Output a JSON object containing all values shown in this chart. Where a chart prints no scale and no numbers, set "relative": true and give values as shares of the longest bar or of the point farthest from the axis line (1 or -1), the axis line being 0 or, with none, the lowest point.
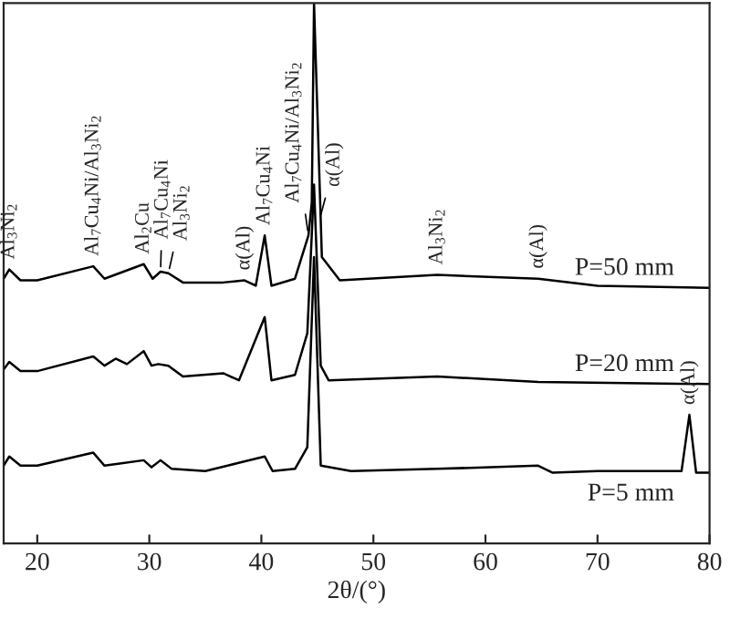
{
  "chart_data": {
    "type": "line",
    "relative": true,
    "xlabel": "2θ/(°)",
    "xlim": [
      17,
      80
    ],
    "xticks": [
      20,
      30,
      40,
      50,
      60,
      70,
      80
    ],
    "grid": false,
    "legend": false,
    "marker": "none",
    "line_style": "solid",
    "series": [
      {
        "name": "P=50 mm",
        "color": "#000000",
        "x": [
          17,
          17.5,
          18.5,
          20,
          25,
          26,
          29.5,
          30.3,
          31,
          31.7,
          33,
          36.6,
          38.5,
          39.5,
          40.3,
          40.9,
          43,
          44.2,
          44.5,
          44.7,
          45.0,
          45.4,
          47,
          55.7,
          64.7,
          70,
          80
        ],
        "values": [
          0.49,
          0.507,
          0.487,
          0.487,
          0.513,
          0.49,
          0.517,
          0.49,
          0.503,
          0.5,
          0.483,
          0.483,
          0.487,
          0.477,
          0.57,
          0.477,
          0.49,
          0.57,
          0.631,
          1.0,
          0.799,
          0.53,
          0.487,
          0.497,
          0.49,
          0.477,
          0.473
        ]
      },
      {
        "name": "P=20 mm",
        "color": "#000000",
        "x": [
          17,
          17.5,
          18.5,
          20,
          25,
          26,
          27,
          28,
          29.5,
          30.2,
          30.8,
          31.7,
          33,
          36.6,
          38,
          40.3,
          40.9,
          43,
          44.1,
          44.7,
          45.3,
          46,
          55.7,
          64.7,
          80
        ],
        "values": [
          0.322,
          0.336,
          0.319,
          0.319,
          0.346,
          0.329,
          0.342,
          0.332,
          0.356,
          0.329,
          0.332,
          0.329,
          0.309,
          0.315,
          0.302,
          0.419,
          0.302,
          0.312,
          0.389,
          0.664,
          0.329,
          0.302,
          0.309,
          0.299,
          0.295
        ]
      },
      {
        "name": "P=5 mm",
        "color": "#000000",
        "x": [
          17,
          17.5,
          18.5,
          20,
          25,
          26,
          29.5,
          30.2,
          31,
          32,
          35,
          40.3,
          41,
          43,
          44.1,
          44.7,
          45.3,
          48,
          55.7,
          64.7,
          66,
          70,
          77.5,
          78.2,
          78.8,
          80
        ],
        "values": [
          0.144,
          0.161,
          0.144,
          0.144,
          0.168,
          0.144,
          0.154,
          0.141,
          0.154,
          0.138,
          0.134,
          0.161,
          0.134,
          0.138,
          0.178,
          0.53,
          0.144,
          0.134,
          0.138,
          0.144,
          0.131,
          0.134,
          0.134,
          0.238,
          0.131,
          0.131
        ]
      }
    ],
    "annotations": [
      {
        "text": "Al$_{3}$Ni$_{2}$",
        "x": 17.5,
        "y": 0.507
      },
      {
        "text": "Al$_{7}$Cu$_{4}$Ni/Al$_{3}$Ni$_{2}$",
        "x": 25,
        "y": 0.513
      },
      {
        "text": "Al$_{2}$Cu",
        "x": 29.5,
        "y": 0.517
      },
      {
        "text": "Al$_{7}$Cu$_{4}$Ni",
        "x": 31,
        "y": 0.503
      },
      {
        "text": "Al$_{3}$Ni$_{2}$",
        "x": 31.7,
        "y": 0.5
      },
      {
        "text": "α(Al)",
        "x": 38.5,
        "y": 0.487
      },
      {
        "text": "Al$_{7}$Cu$_{4}$Ni",
        "x": 40.3,
        "y": 0.57
      },
      {
        "text": "Al$_{7}$Cu$_{4}$Ni/Al$_{3}$Ni$_{2}$",
        "x": 44.2,
        "y": 0.57
      },
      {
        "text": "α(Al)",
        "x": 45.2,
        "y": 0.6
      },
      {
        "text": "Al$_{3}$Ni$_{2}$",
        "x": 55.7,
        "y": 0.497
      },
      {
        "text": "α(Al)",
        "x": 64.7,
        "y": 0.49
      },
      {
        "text": "α(Al)",
        "x": 78.2,
        "y": 0.238
      }
    ]
  }
}
